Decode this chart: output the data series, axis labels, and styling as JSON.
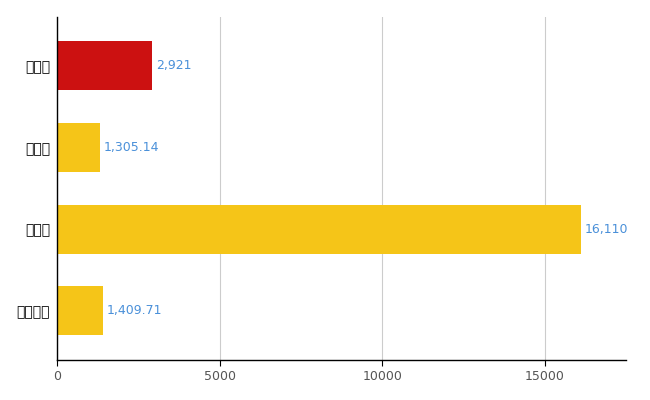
{
  "categories": [
    "天草市",
    "県平均",
    "県最大",
    "全国平均"
  ],
  "values": [
    2921,
    1305.14,
    16110,
    1409.71
  ],
  "labels": [
    "2,921",
    "1,305.14",
    "16,110",
    "1,409.71"
  ],
  "bar_colors": [
    "#cc1111",
    "#f5c518",
    "#f5c518",
    "#f5c518"
  ],
  "label_color": "#4a90d9",
  "xlim": [
    0,
    17500
  ],
  "xticks": [
    0,
    5000,
    10000,
    15000
  ],
  "xtick_labels": [
    "0",
    "5000",
    "10000",
    "15000"
  ],
  "grid_color": "#cccccc",
  "background_color": "#ffffff",
  "bar_height": 0.6,
  "label_fontsize": 9,
  "tick_fontsize": 9,
  "ytick_fontsize": 10
}
